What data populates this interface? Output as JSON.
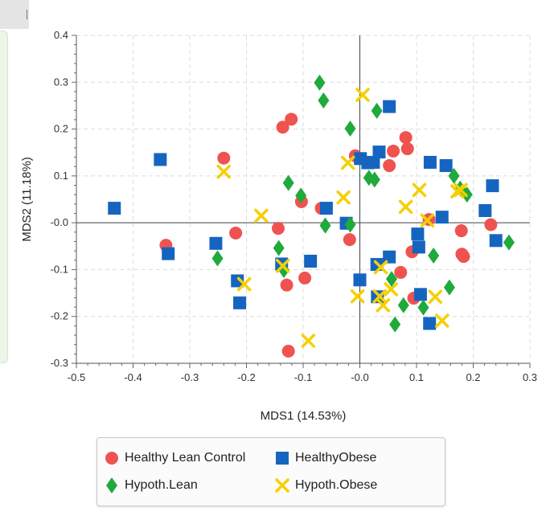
{
  "chart_data": {
    "type": "scatter",
    "xlabel": "MDS1 (14.53%)",
    "ylabel": "MDS2 (11.18%)",
    "xlim": [
      -0.5,
      0.3
    ],
    "ylim": [
      -0.3,
      0.4
    ],
    "xticks": [
      "-0.5",
      "-0.4",
      "-0.3",
      "-0.2",
      "-0.1",
      "-0.0",
      "0.1",
      "0.2",
      "0.3"
    ],
    "xtick_values": [
      -0.5,
      -0.4,
      -0.3,
      -0.2,
      -0.1,
      0.0,
      0.1,
      0.2,
      0.3
    ],
    "yticks": [
      "0.4",
      "0.3",
      "0.2",
      "0.1",
      "-0.0",
      "-0.1",
      "-0.2",
      "-0.3"
    ],
    "ytick_values": [
      0.4,
      0.3,
      0.2,
      0.1,
      0.0,
      -0.1,
      -0.2,
      -0.3
    ],
    "grid": true,
    "legend_position": "bottom",
    "series": [
      {
        "name": "Healthy Lean Control",
        "marker": "circle",
        "color": "#ef5350",
        "points": [
          [
            -0.24,
            0.138
          ],
          [
            -0.136,
            0.204
          ],
          [
            -0.121,
            0.221
          ],
          [
            -0.342,
            -0.048
          ],
          [
            -0.219,
            -0.022
          ],
          [
            -0.144,
            -0.012
          ],
          [
            -0.103,
            0.045
          ],
          [
            -0.068,
            0.031
          ],
          [
            -0.018,
            -0.036
          ],
          [
            -0.008,
            0.143
          ],
          [
            0.052,
            0.122
          ],
          [
            0.059,
            0.153
          ],
          [
            0.081,
            0.182
          ],
          [
            0.084,
            0.158
          ],
          [
            0.092,
            -0.062
          ],
          [
            0.072,
            -0.106
          ],
          [
            0.095,
            -0.161
          ],
          [
            0.122,
            0.007
          ],
          [
            0.18,
            -0.067
          ],
          [
            0.183,
            -0.072
          ],
          [
            0.179,
            -0.017
          ],
          [
            0.231,
            -0.004
          ],
          [
            -0.129,
            -0.133
          ],
          [
            -0.097,
            -0.118
          ],
          [
            -0.126,
            -0.274
          ]
        ]
      },
      {
        "name": "HealthyObese",
        "marker": "square",
        "color": "#1565c0",
        "points": [
          [
            -0.352,
            0.135
          ],
          [
            -0.433,
            0.031
          ],
          [
            -0.338,
            -0.066
          ],
          [
            -0.254,
            -0.044
          ],
          [
            -0.216,
            -0.124
          ],
          [
            -0.212,
            -0.171
          ],
          [
            -0.138,
            -0.088
          ],
          [
            -0.087,
            -0.082
          ],
          [
            -0.059,
            0.031
          ],
          [
            -0.024,
            -0.001
          ],
          [
            0.001,
            0.137
          ],
          [
            0.014,
            0.128
          ],
          [
            0.024,
            0.129
          ],
          [
            0.034,
            0.151
          ],
          [
            0.052,
            0.248
          ],
          [
            0.03,
            -0.089
          ],
          [
            0.052,
            -0.073
          ],
          [
            0.0,
            -0.122
          ],
          [
            0.031,
            -0.158
          ],
          [
            0.102,
            -0.024
          ],
          [
            0.104,
            -0.052
          ],
          [
            0.107,
            -0.153
          ],
          [
            0.123,
            -0.215
          ],
          [
            0.124,
            0.129
          ],
          [
            0.152,
            0.122
          ],
          [
            0.145,
            0.012
          ],
          [
            0.221,
            0.026
          ],
          [
            0.234,
            0.079
          ],
          [
            0.24,
            -0.038
          ]
        ]
      },
      {
        "name": "Hypoth.Lean",
        "marker": "diamond",
        "color": "#1faa3b",
        "points": [
          [
            -0.071,
            0.299
          ],
          [
            -0.064,
            0.261
          ],
          [
            -0.017,
            0.201
          ],
          [
            0.03,
            0.239
          ],
          [
            -0.126,
            0.085
          ],
          [
            -0.104,
            0.058
          ],
          [
            -0.061,
            -0.006
          ],
          [
            -0.017,
            -0.004
          ],
          [
            0.016,
            0.096
          ],
          [
            0.026,
            0.092
          ],
          [
            -0.143,
            -0.054
          ],
          [
            -0.134,
            -0.101
          ],
          [
            -0.251,
            -0.076
          ],
          [
            0.056,
            -0.12
          ],
          [
            0.062,
            -0.217
          ],
          [
            0.077,
            -0.176
          ],
          [
            0.112,
            -0.181
          ],
          [
            0.13,
            -0.07
          ],
          [
            0.158,
            -0.138
          ],
          [
            0.166,
            0.1
          ],
          [
            0.177,
            0.073
          ],
          [
            0.189,
            0.06
          ],
          [
            0.263,
            -0.042
          ]
        ]
      },
      {
        "name": "Hypoth.Obese",
        "marker": "x",
        "color": "#f5d000",
        "points": [
          [
            0.005,
            0.273
          ],
          [
            -0.021,
            0.128
          ],
          [
            -0.24,
            0.109
          ],
          [
            -0.029,
            0.054
          ],
          [
            -0.174,
            0.015
          ],
          [
            -0.136,
            -0.092
          ],
          [
            -0.204,
            -0.131
          ],
          [
            -0.091,
            -0.252
          ],
          [
            -0.004,
            -0.157
          ],
          [
            0.037,
            -0.095
          ],
          [
            0.055,
            -0.142
          ],
          [
            0.041,
            -0.176
          ],
          [
            0.081,
            0.034
          ],
          [
            0.105,
            0.07
          ],
          [
            0.119,
            0.005
          ],
          [
            0.133,
            -0.158
          ],
          [
            0.145,
            -0.209
          ],
          [
            0.172,
            0.067
          ],
          [
            0.178,
            0.07
          ],
          [
            0.035,
            -0.157
          ]
        ]
      }
    ]
  },
  "legend": {
    "items": [
      {
        "label": "Healthy Lean Control",
        "color": "#ef5350",
        "icon": "circle-icon"
      },
      {
        "label": "HealthyObese",
        "color": "#1565c0",
        "icon": "square-icon"
      },
      {
        "label": "Hypoth.Lean",
        "color": "#1faa3b",
        "icon": "diamond-icon"
      },
      {
        "label": "Hypoth.Obese",
        "color": "#f5d000",
        "icon": "x-icon"
      }
    ]
  }
}
